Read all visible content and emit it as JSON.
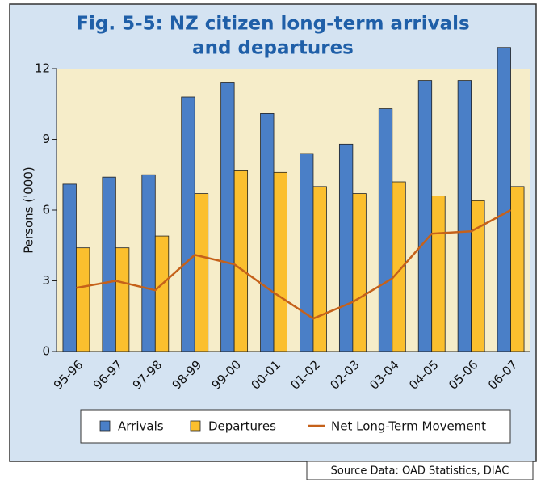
{
  "chart_data": {
    "type": "bar_line",
    "title": [
      "Fig. 5-5: NZ citizen long-term arrivals",
      "and departures"
    ],
    "ylabel": "Persons ('000)",
    "source": "Source Data: OAD Statistics, DIAC",
    "categories": [
      "95-96",
      "96-97",
      "97-98",
      "98-99",
      "99-00",
      "00-01",
      "01-02",
      "02-03",
      "03-04",
      "04-05",
      "05-06",
      "06-07"
    ],
    "series": [
      {
        "name": "Arrivals",
        "type": "bar",
        "color": "#4a7fc7",
        "values": [
          7.1,
          7.4,
          7.5,
          10.8,
          11.4,
          10.1,
          8.4,
          8.8,
          10.3,
          11.5,
          11.5,
          12.9
        ]
      },
      {
        "name": "Departures",
        "type": "bar",
        "color": "#fbbf2e",
        "values": [
          4.4,
          4.4,
          4.9,
          6.7,
          7.7,
          7.6,
          7.0,
          6.7,
          7.2,
          6.6,
          6.4,
          7.0
        ]
      },
      {
        "name": "Net Long-Term Movement",
        "type": "line",
        "color": "#c5611a",
        "values": [
          2.7,
          3.0,
          2.6,
          4.1,
          3.7,
          2.5,
          1.4,
          2.1,
          3.1,
          5.0,
          5.1,
          6.0
        ]
      }
    ],
    "ylim": [
      0,
      12
    ],
    "yticks": [
      0,
      3,
      6,
      9,
      12
    ],
    "legend": "bottom"
  }
}
